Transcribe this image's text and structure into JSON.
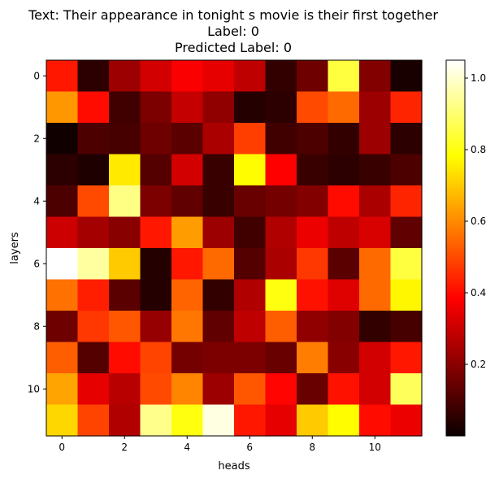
{
  "chart_data": {
    "type": "heatmap",
    "title_lines": [
      "Text: Their appearance in tonight s movie is their first together",
      "Label: 0",
      "Predicted Label: 0"
    ],
    "xlabel": "heads",
    "ylabel": "layers",
    "x_ticks": [
      0,
      2,
      4,
      6,
      8,
      10
    ],
    "y_ticks": [
      0,
      2,
      4,
      6,
      8,
      10
    ],
    "colormap": "hot",
    "vmin": 0.0,
    "vmax": 1.05,
    "colorbar_ticks": [
      0.2,
      0.4,
      0.6,
      0.8,
      1.0
    ],
    "values": [
      [
        0.42,
        0.05,
        0.22,
        0.3,
        0.36,
        0.33,
        0.27,
        0.06,
        0.15,
        0.85,
        0.18,
        0.02
      ],
      [
        0.62,
        0.4,
        0.08,
        0.17,
        0.28,
        0.2,
        0.04,
        0.05,
        0.5,
        0.55,
        0.22,
        0.44
      ],
      [
        0.01,
        0.1,
        0.09,
        0.15,
        0.12,
        0.24,
        0.48,
        0.08,
        0.1,
        0.06,
        0.22,
        0.05
      ],
      [
        0.05,
        0.03,
        0.75,
        0.11,
        0.3,
        0.07,
        0.78,
        0.37,
        0.07,
        0.05,
        0.07,
        0.1
      ],
      [
        0.1,
        0.5,
        0.92,
        0.17,
        0.13,
        0.07,
        0.14,
        0.16,
        0.18,
        0.4,
        0.24,
        0.44
      ],
      [
        0.29,
        0.23,
        0.19,
        0.42,
        0.63,
        0.22,
        0.08,
        0.25,
        0.34,
        0.27,
        0.31,
        0.13
      ],
      [
        1.05,
        0.95,
        0.7,
        0.04,
        0.42,
        0.55,
        0.11,
        0.24,
        0.47,
        0.12,
        0.55,
        0.85
      ],
      [
        0.56,
        0.43,
        0.12,
        0.04,
        0.54,
        0.06,
        0.25,
        0.8,
        0.41,
        0.32,
        0.55,
        0.77
      ],
      [
        0.15,
        0.47,
        0.52,
        0.21,
        0.57,
        0.13,
        0.27,
        0.53,
        0.2,
        0.18,
        0.06,
        0.09
      ],
      [
        0.53,
        0.11,
        0.4,
        0.49,
        0.16,
        0.17,
        0.17,
        0.14,
        0.58,
        0.19,
        0.3,
        0.42
      ],
      [
        0.64,
        0.33,
        0.26,
        0.5,
        0.59,
        0.22,
        0.52,
        0.39,
        0.14,
        0.41,
        0.3,
        0.88
      ],
      [
        0.72,
        0.49,
        0.25,
        0.93,
        0.8,
        1.02,
        0.42,
        0.33,
        0.7,
        0.78,
        0.4,
        0.34
      ]
    ]
  }
}
